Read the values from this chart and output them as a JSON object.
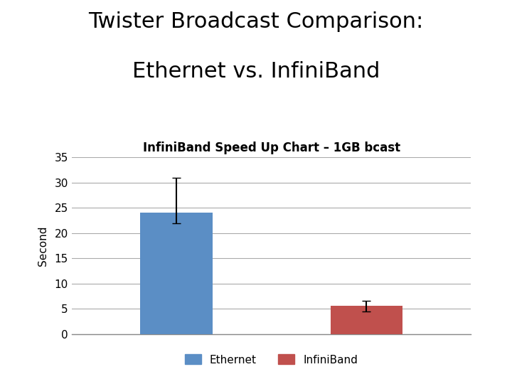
{
  "title_line1": "Twister Broadcast Comparison:",
  "title_line2": "Ethernet vs. InfiniBand",
  "subtitle": "InfiniBand Speed Up Chart – 1GB bcast",
  "categories": [
    "Ethernet",
    "InfiniBand"
  ],
  "values": [
    24.0,
    5.6
  ],
  "errors_upper": [
    7.0,
    1.0
  ],
  "errors_lower": [
    2.0,
    1.1
  ],
  "bar_colors": [
    "#5b8ec5",
    "#c0504d"
  ],
  "ylabel": "Second",
  "ylim": [
    0,
    35
  ],
  "yticks": [
    0,
    5,
    10,
    15,
    20,
    25,
    30,
    35
  ],
  "background_color": "#ffffff",
  "grid_color": "#aaaaaa",
  "title_fontsize": 22,
  "subtitle_fontsize": 12,
  "ylabel_fontsize": 11,
  "tick_fontsize": 11,
  "legend_fontsize": 11
}
